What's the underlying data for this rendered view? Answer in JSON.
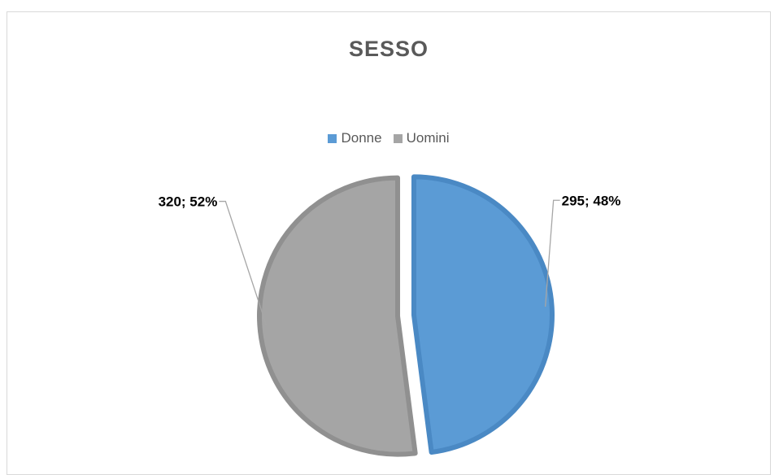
{
  "chart_data": {
    "type": "pie",
    "title": "SESSO",
    "legend_position": "top",
    "slices": [
      {
        "name": "Donne",
        "value": 295,
        "percent": "48%",
        "label": "295; 48%",
        "color": "#5b9bd5",
        "border": "#4a89c4"
      },
      {
        "name": "Uomini",
        "value": 320,
        "percent": "52%",
        "label": "320; 52%",
        "color": "#a5a5a5",
        "border": "#909090"
      }
    ]
  }
}
